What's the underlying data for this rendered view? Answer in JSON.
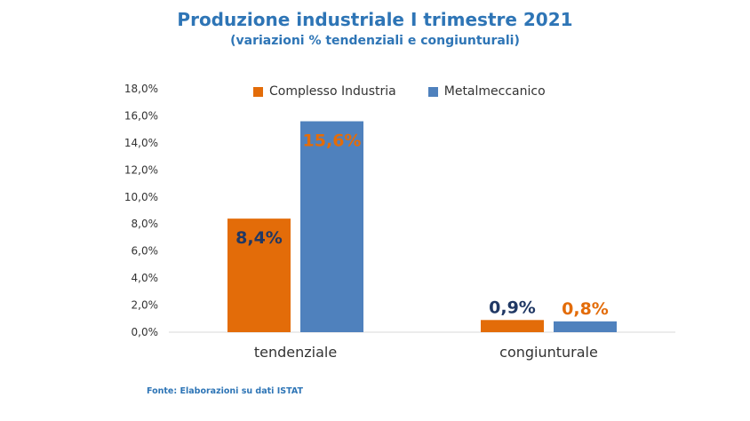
{
  "chart_data": {
    "type": "bar",
    "title": "Produzione industriale I trimestre 2021",
    "subtitle": "(variazioni % tendenziali e congiunturali)",
    "categories": [
      "tendenziale",
      "congiunturale"
    ],
    "series": [
      {
        "name": "Complesso Industria",
        "color": "#e36c09",
        "values": [
          8.4,
          0.9
        ],
        "labels": [
          "8,4%",
          "0,9%"
        ],
        "label_colors": [
          "#203864",
          "#203864"
        ]
      },
      {
        "name": "Metalmeccanico",
        "color": "#4f81bd",
        "values": [
          15.6,
          0.8
        ],
        "labels": [
          "15,6%",
          "0,8%"
        ],
        "label_colors": [
          "#e36c09",
          "#e36c09"
        ]
      }
    ],
    "ylim": [
      0,
      18
    ],
    "yticks": [
      0,
      2,
      4,
      6,
      8,
      10,
      12,
      14,
      16,
      18
    ],
    "ytick_labels": [
      "0,0%",
      "2,0%",
      "4,0%",
      "6,0%",
      "8,0%",
      "10,0%",
      "12,0%",
      "14,0%",
      "16,0%",
      "18,0%"
    ],
    "xlabel": "",
    "ylabel": "",
    "grid": false,
    "legend_position": "top"
  },
  "source": "Fonte: Elaborazioni su dati ISTAT"
}
